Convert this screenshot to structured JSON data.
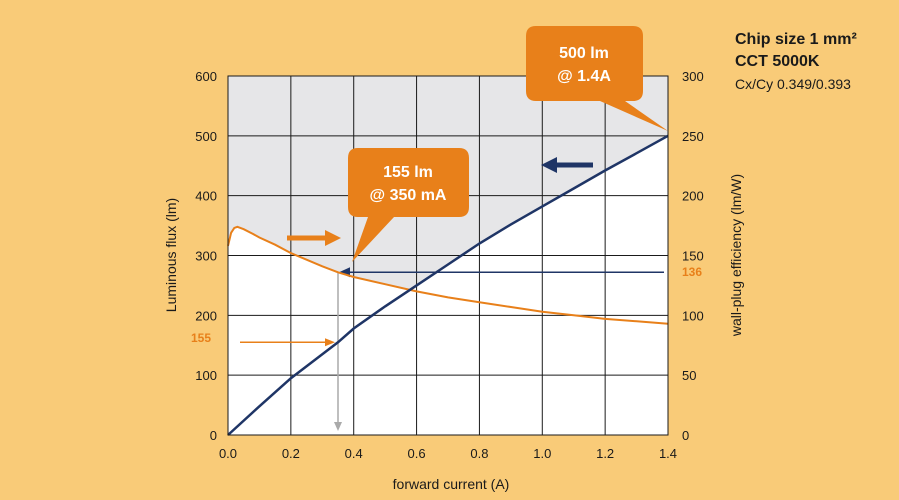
{
  "colors": {
    "background": "#F9CB78",
    "plot_shade": "#E6E6E8",
    "plot_white": "#FFFFFF",
    "grid": "#1a1a1a",
    "flux_series": "#1F3566",
    "efficiency_series": "#E8801A",
    "callout_fill": "#E8801A",
    "reference_drop": "#AAAAAA"
  },
  "info": {
    "chip_size": "Chip size 1 mm²",
    "cct": "CCT 5000K",
    "cxcy": "Cx/Cy 0.349/0.393"
  },
  "callouts": [
    {
      "line1": "500 lm",
      "line2": "@ 1.4A"
    },
    {
      "line1": "155 lm",
      "line2": "@ 350 mA"
    }
  ],
  "markers": {
    "left_value": "155",
    "right_value": "136"
  },
  "chart_data": {
    "type": "line",
    "xlabel": "forward current (A)",
    "ylabel": "Luminous flux (lm)",
    "y2label": "wall-plug efficiency (lm/W)",
    "xlim": [
      0,
      1.4
    ],
    "ylim": [
      0,
      600
    ],
    "y2lim": [
      0,
      300
    ],
    "x_ticks": [
      "0.0",
      "0.2",
      "0.4",
      "0.6",
      "0.8",
      "1.0",
      "1.2",
      "1.4"
    ],
    "y_ticks": [
      "0",
      "100",
      "200",
      "300",
      "400",
      "500",
      "600"
    ],
    "y2_ticks": [
      "0",
      "50",
      "100",
      "150",
      "200",
      "250",
      "300"
    ],
    "grid": true,
    "series": [
      {
        "axis": "left",
        "x": [
          0,
          0.1,
          0.2,
          0.3,
          0.35,
          0.4,
          0.5,
          0.6,
          0.7,
          0.8,
          0.9,
          1.0,
          1.1,
          1.2,
          1.3,
          1.4
        ],
        "y": [
          0,
          48,
          95,
          135,
          155,
          178,
          215,
          250,
          285,
          320,
          352,
          382,
          412,
          442,
          471,
          500
        ]
      },
      {
        "axis": "right",
        "x": [
          0,
          0.01,
          0.02,
          0.03,
          0.05,
          0.08,
          0.1,
          0.15,
          0.2,
          0.3,
          0.35,
          0.4,
          0.5,
          0.6,
          0.7,
          0.8,
          0.9,
          1.0,
          1.1,
          1.2,
          1.3,
          1.4
        ],
        "y": [
          158,
          169,
          173,
          174,
          172,
          168,
          165,
          159,
          152,
          141,
          136,
          132,
          126,
          120,
          115,
          111,
          107,
          103,
          100,
          97,
          95,
          93
        ]
      }
    ]
  }
}
